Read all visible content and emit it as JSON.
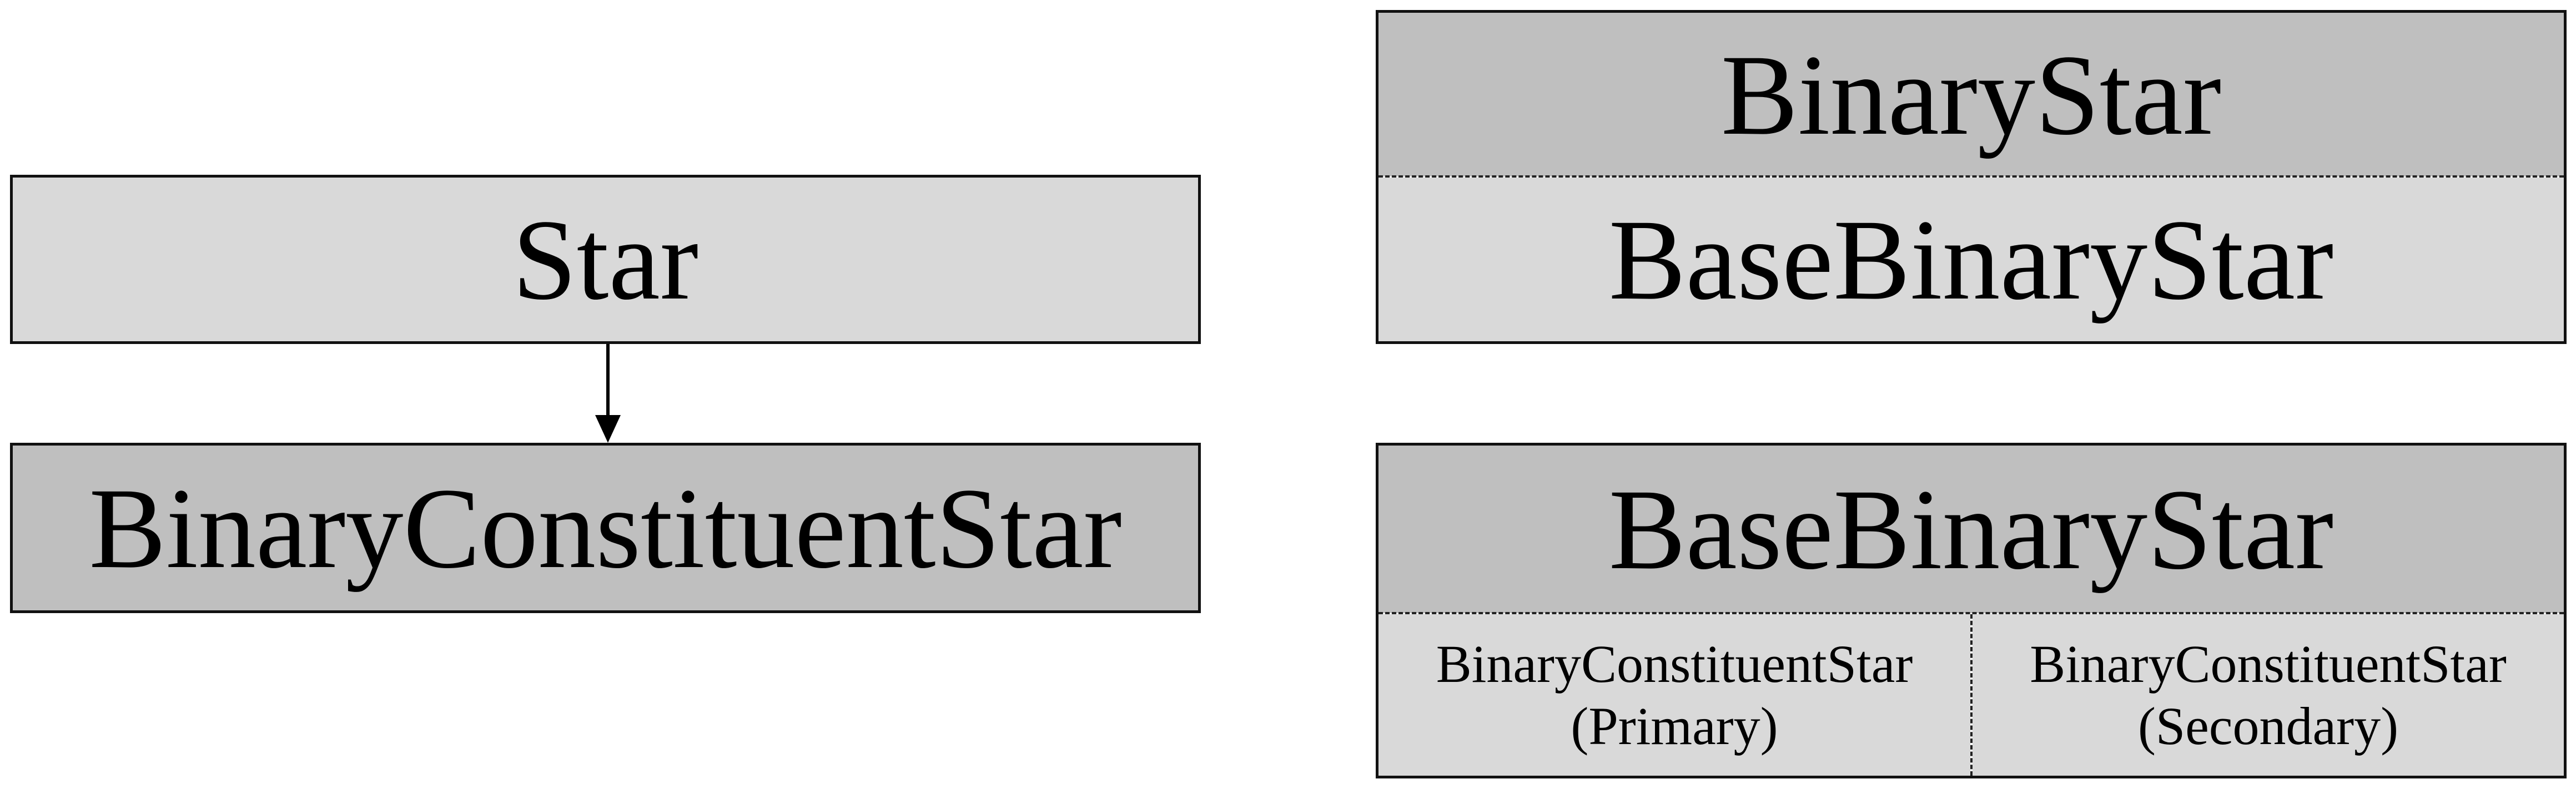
{
  "left": {
    "star_label": "Star",
    "constituent_label": "BinaryConstituentStar"
  },
  "right_top": {
    "binary_star_label": "BinaryStar",
    "base_binary_star_label": "BaseBinaryStar"
  },
  "right_bottom": {
    "base_binary_star_label": "BaseBinaryStar",
    "primary": {
      "name": "BinaryConstituentStar",
      "role": "(Primary)"
    },
    "secondary": {
      "name": "BinaryConstituentStar",
      "role": "(Secondary)"
    }
  },
  "colors": {
    "light_fill": "#d9d9d9",
    "dark_fill": "#bfbfbf",
    "border": "#111111"
  }
}
